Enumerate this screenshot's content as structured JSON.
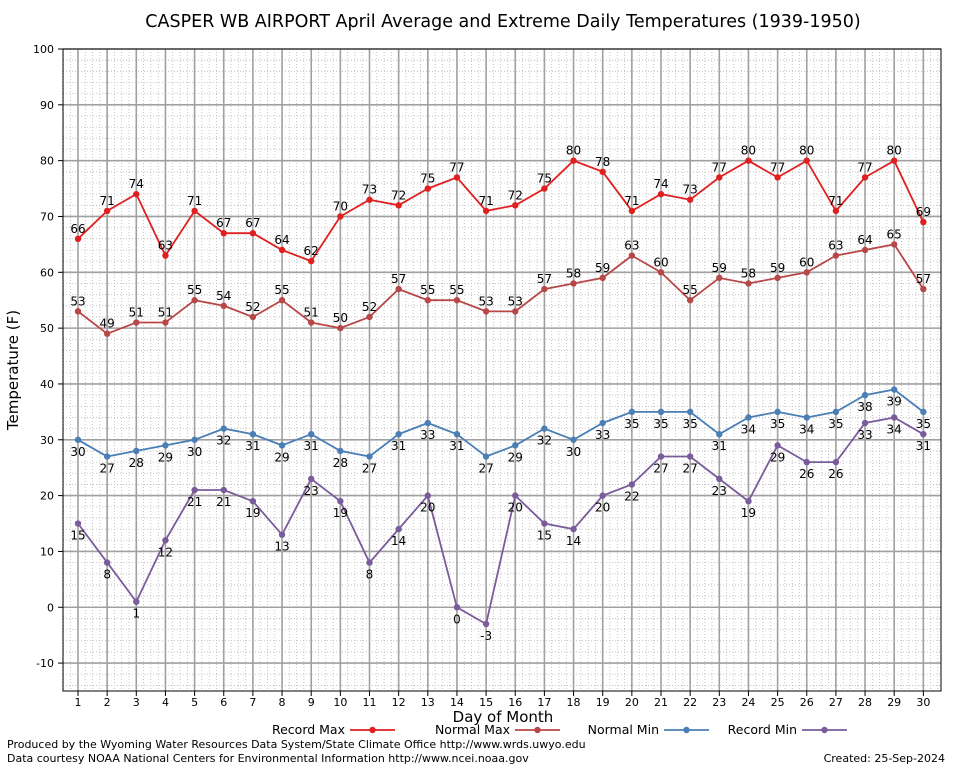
{
  "chart_data": {
    "type": "line",
    "title": "CASPER WB AIRPORT April Average and Extreme Daily Temperatures (1939-1950)",
    "xlabel": "Day of Month",
    "ylabel": "Temperature (F)",
    "ylim": [
      -15,
      100
    ],
    "yticks": [
      -10,
      0,
      10,
      20,
      30,
      40,
      50,
      60,
      70,
      80,
      90,
      100
    ],
    "xlim": [
      0.5,
      30.3
    ],
    "x": [
      1,
      2,
      3,
      4,
      5,
      6,
      7,
      8,
      9,
      10,
      11,
      12,
      13,
      14,
      15,
      16,
      17,
      18,
      19,
      20,
      21,
      22,
      23,
      24,
      25,
      26,
      27,
      28,
      29,
      30
    ],
    "grid": true,
    "legend_position": "bottom",
    "series": [
      {
        "name": "Record Max",
        "color": "#e02020",
        "label_position": "above",
        "values": [
          66,
          71,
          74,
          63,
          71,
          67,
          67,
          64,
          62,
          70,
          73,
          72,
          75,
          77,
          71,
          72,
          75,
          80,
          78,
          71,
          74,
          73,
          77,
          80,
          77,
          80,
          71,
          77,
          80,
          69
        ]
      },
      {
        "name": "Normal Max",
        "color": "#b84848",
        "label_position": "above",
        "values": [
          53,
          49,
          51,
          51,
          55,
          54,
          52,
          55,
          51,
          50,
          52,
          57,
          55,
          55,
          53,
          53,
          57,
          58,
          59,
          63,
          60,
          55,
          59,
          58,
          59,
          60,
          63,
          64,
          65,
          57
        ]
      },
      {
        "name": "Normal Min",
        "color": "#4a7fb5",
        "label_position": "below",
        "values": [
          30,
          27,
          28,
          29,
          30,
          32,
          31,
          29,
          31,
          28,
          27,
          31,
          33,
          31,
          27,
          29,
          32,
          30,
          33,
          35,
          35,
          35,
          31,
          34,
          35,
          34,
          35,
          38,
          39,
          35
        ]
      },
      {
        "name": "Record Min",
        "color": "#7a5c9a",
        "label_position": "below",
        "values": [
          15,
          8,
          1,
          12,
          21,
          21,
          19,
          13,
          23,
          19,
          8,
          14,
          20,
          0,
          -3,
          20,
          15,
          14,
          20,
          22,
          27,
          27,
          23,
          19,
          29,
          26,
          26,
          33,
          34,
          31
        ]
      }
    ]
  },
  "footer": {
    "produced_by": "Produced by the Wyoming Water Resources Data System/State Climate Office http://www.wrds.uwyo.edu",
    "courtesy": "Data courtesy NOAA National Centers for Environmental Information http://www.ncei.noaa.gov",
    "created": "Created:  25-Sep-2024"
  }
}
